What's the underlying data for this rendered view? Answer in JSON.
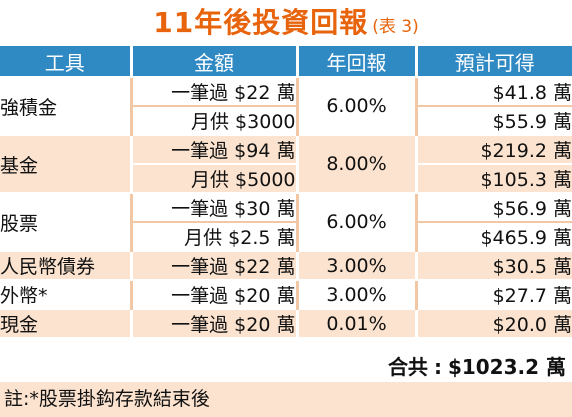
{
  "title": {
    "main": "11年後投資回報",
    "sub": "(表 3)"
  },
  "headers": [
    "工具",
    "金額",
    "年回報",
    "預計可得"
  ],
  "groups": [
    {
      "tool": "強積金",
      "rate": "6.00%",
      "rows": [
        {
          "method": "一筆過 $22 萬",
          "expected": "$41.8 萬"
        },
        {
          "method": "月供 $3000",
          "expected": "$55.9 萬"
        }
      ]
    },
    {
      "tool": "基金",
      "rate": "8.00%",
      "rows": [
        {
          "method": "一筆過 $94 萬",
          "expected": "$219.2 萬"
        },
        {
          "method": "月供 $5000",
          "expected": "$105.3 萬"
        }
      ]
    },
    {
      "tool": "股票",
      "rate": "6.00%",
      "rows": [
        {
          "method": "一筆過 $30 萬",
          "expected": "$56.9 萬"
        },
        {
          "method": "月供 $2.5 萬",
          "expected": "$465.9 萬"
        }
      ]
    },
    {
      "tool": "人民幣債券",
      "rate": "3.00%",
      "rows": [
        {
          "method": "一筆過 $22 萬",
          "expected": "$30.5 萬"
        }
      ]
    },
    {
      "tool": "外幣*",
      "rate": "3.00%",
      "rows": [
        {
          "method": "一筆過 $20 萬",
          "expected": "$27.7 萬"
        }
      ]
    },
    {
      "tool": "現金",
      "rate": "0.01%",
      "rows": [
        {
          "method": "一筆過 $20 萬",
          "expected": "$20.0 萬"
        }
      ]
    }
  ],
  "total": {
    "label": "合共",
    "separator": ":",
    "value": "$1023.2 萬"
  },
  "note": "註:*股票掛鈎存款結束後"
}
